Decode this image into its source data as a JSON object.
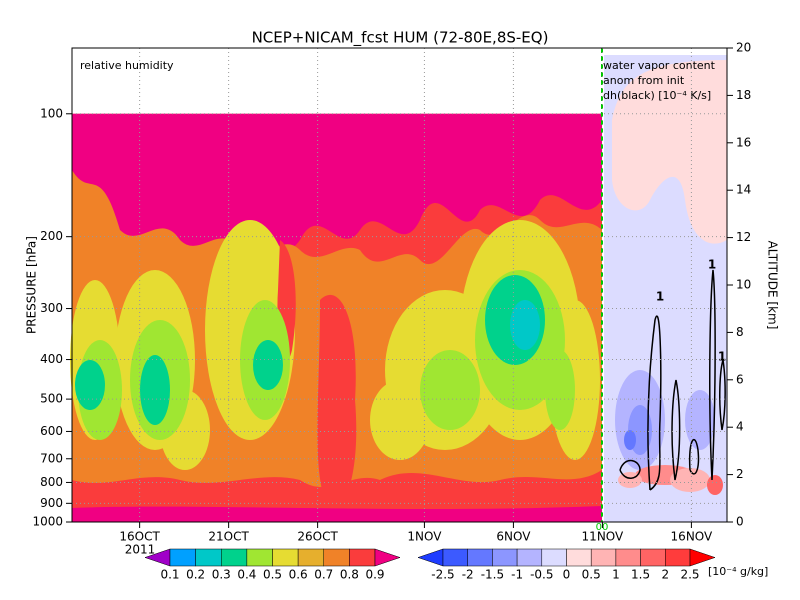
{
  "chart_data": {
    "type": "contour",
    "title": "NCEP+NICAM_fcst HUM (72-80E,8S-EQ)",
    "annotations": [
      "relative humidity",
      "water vapor content",
      "anom from init",
      "dh(black) [10⁻⁴ K/s]"
    ],
    "contour_labels": [
      "1",
      "1",
      "1"
    ],
    "init_label": "00",
    "year_label": "2011",
    "xlim": [
      285.2,
      322
    ],
    "xticks": [
      {
        "value": 289,
        "label": "16OCT"
      },
      {
        "value": 294,
        "label": "21OCT"
      },
      {
        "value": 299,
        "label": "26OCT"
      },
      {
        "value": 305,
        "label": "1NOV"
      },
      {
        "value": 310,
        "label": "6NOV"
      },
      {
        "value": 315,
        "label": "11NOV"
      },
      {
        "value": 320,
        "label": "16NOV"
      }
    ],
    "ylabel": "PRESSURE [hPa]",
    "ylog": true,
    "ylim": [
      1000,
      69
    ],
    "yticks": [
      100,
      200,
      300,
      400,
      500,
      600,
      700,
      800,
      900,
      1000
    ],
    "y2label": "ALTITUDE [km]",
    "y2lim": [
      0,
      20
    ],
    "y2ticks": [
      0,
      2,
      4,
      6,
      8,
      10,
      12,
      14,
      16,
      18,
      20
    ],
    "grid": true,
    "colorbars": [
      {
        "ticks": [
          0.1,
          0.2,
          0.3,
          0.4,
          0.5,
          0.6,
          0.7,
          0.8,
          0.9
        ],
        "colors": [
          "#a000c8",
          "#00a0ff",
          "#00c8c8",
          "#00d28c",
          "#a0e632",
          "#e6dc32",
          "#e6af2d",
          "#f08228",
          "#fa3c3c",
          "#f00082"
        ]
      },
      {
        "ticks": [
          -2.5,
          -2,
          -1.5,
          -1,
          -0.5,
          0,
          0.5,
          1,
          1.5,
          2,
          2.5
        ],
        "colors": [
          "#1e3cff",
          "#3c5aff",
          "#6478ff",
          "#8c96ff",
          "#b4b4ff",
          "#dcdcff",
          "#ffdcdc",
          "#ffb4b4",
          "#ff8c8c",
          "#ff6464",
          "#ff3c3c",
          "#ff0000"
        ],
        "unit": "[10⁻⁴ g/kg]"
      }
    ]
  }
}
